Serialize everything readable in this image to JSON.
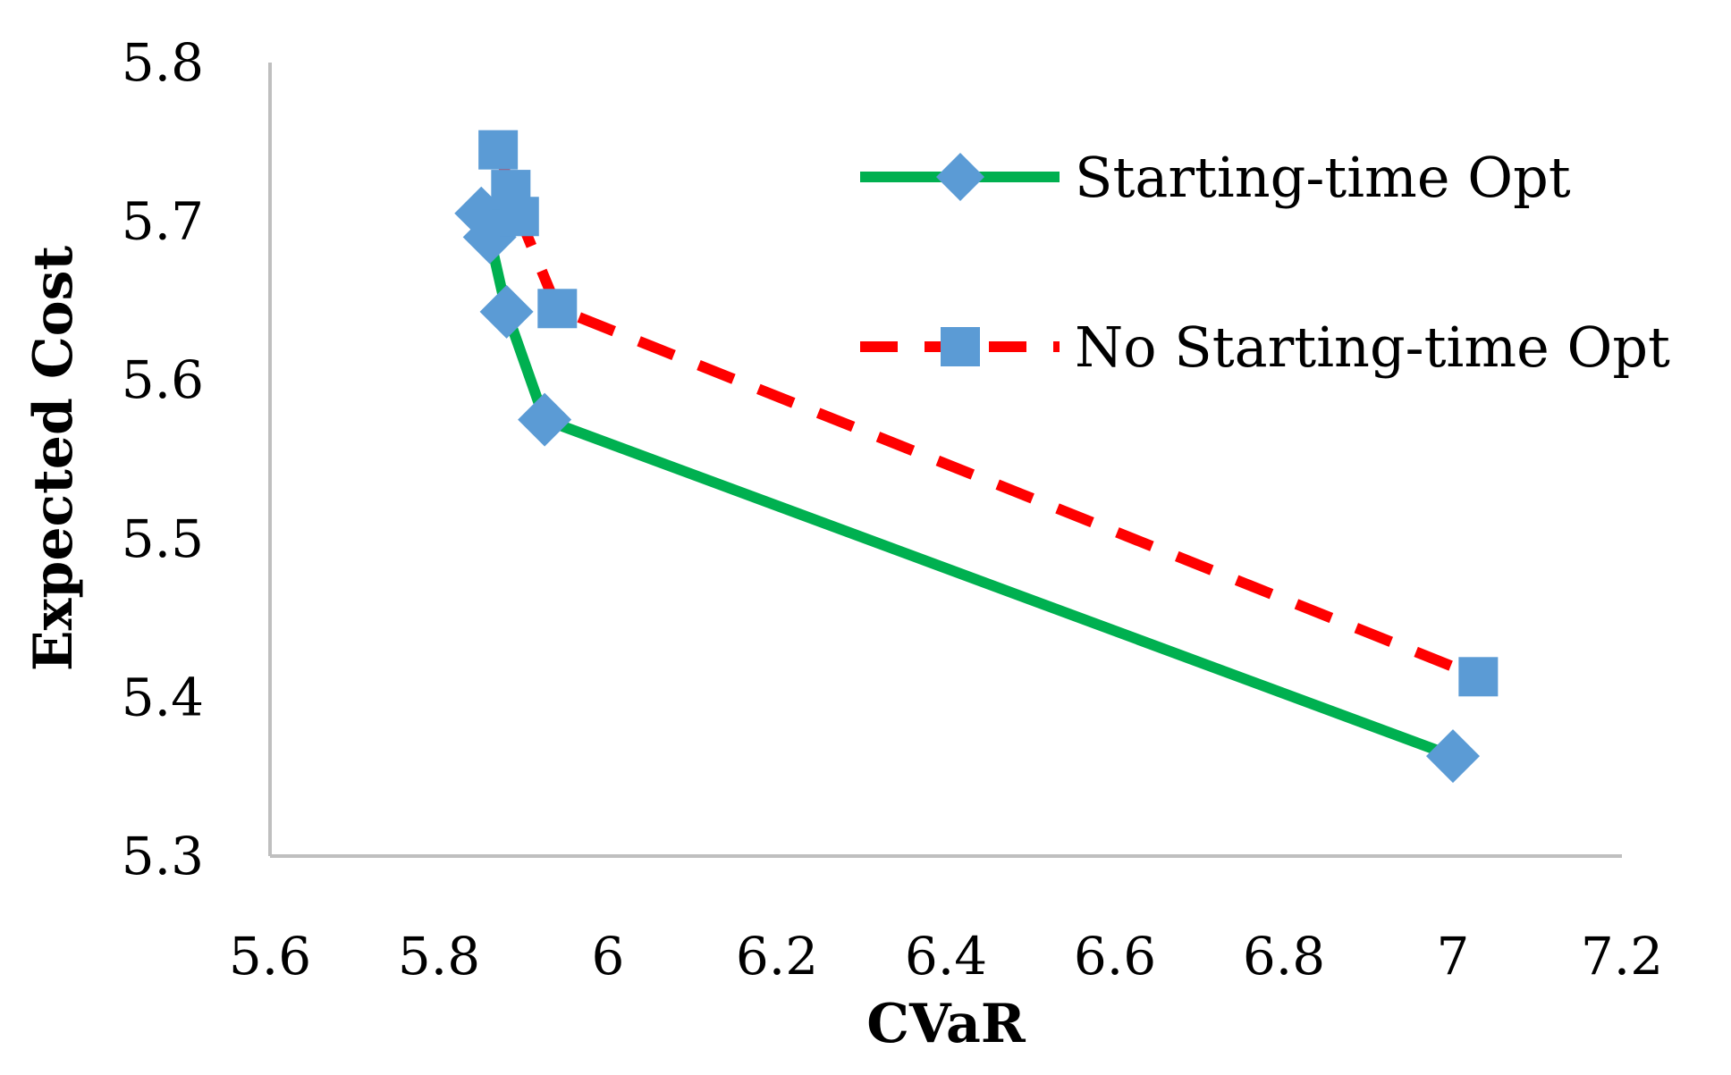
{
  "chart_data": {
    "type": "line",
    "title": "",
    "xlabel": "CVaR",
    "ylabel": "Expected Cost",
    "xlim": [
      5.6,
      7.2
    ],
    "ylim": [
      5.3,
      5.8
    ],
    "x_ticks": [
      "5.6",
      "5.8",
      "6",
      "6.2",
      "6.4",
      "6.6",
      "6.8",
      "7",
      "7.2"
    ],
    "y_ticks": [
      "5.3",
      "5.4",
      "5.5",
      "5.6",
      "5.7",
      "5.8"
    ],
    "grid": false,
    "legend_position": "top-right",
    "series": [
      {
        "name": "Starting-time Opt",
        "line_color": "#00b050",
        "marker_color": "#5b9bd5",
        "line_style": "solid",
        "marker": "diamond",
        "points": [
          {
            "x": 5.85,
            "y": 5.705
          },
          {
            "x": 5.86,
            "y": 5.69
          },
          {
            "x": 5.88,
            "y": 5.643
          },
          {
            "x": 5.925,
            "y": 5.575
          },
          {
            "x": 7.0,
            "y": 5.363
          }
        ]
      },
      {
        "name": "No Starting-time Opt",
        "line_color": "#ff0000",
        "marker_color": "#5b9bd5",
        "line_style": "dashed",
        "marker": "square",
        "points": [
          {
            "x": 5.87,
            "y": 5.745
          },
          {
            "x": 5.885,
            "y": 5.72
          },
          {
            "x": 5.895,
            "y": 5.703
          },
          {
            "x": 5.94,
            "y": 5.645
          },
          {
            "x": 7.03,
            "y": 5.413
          }
        ]
      }
    ]
  }
}
